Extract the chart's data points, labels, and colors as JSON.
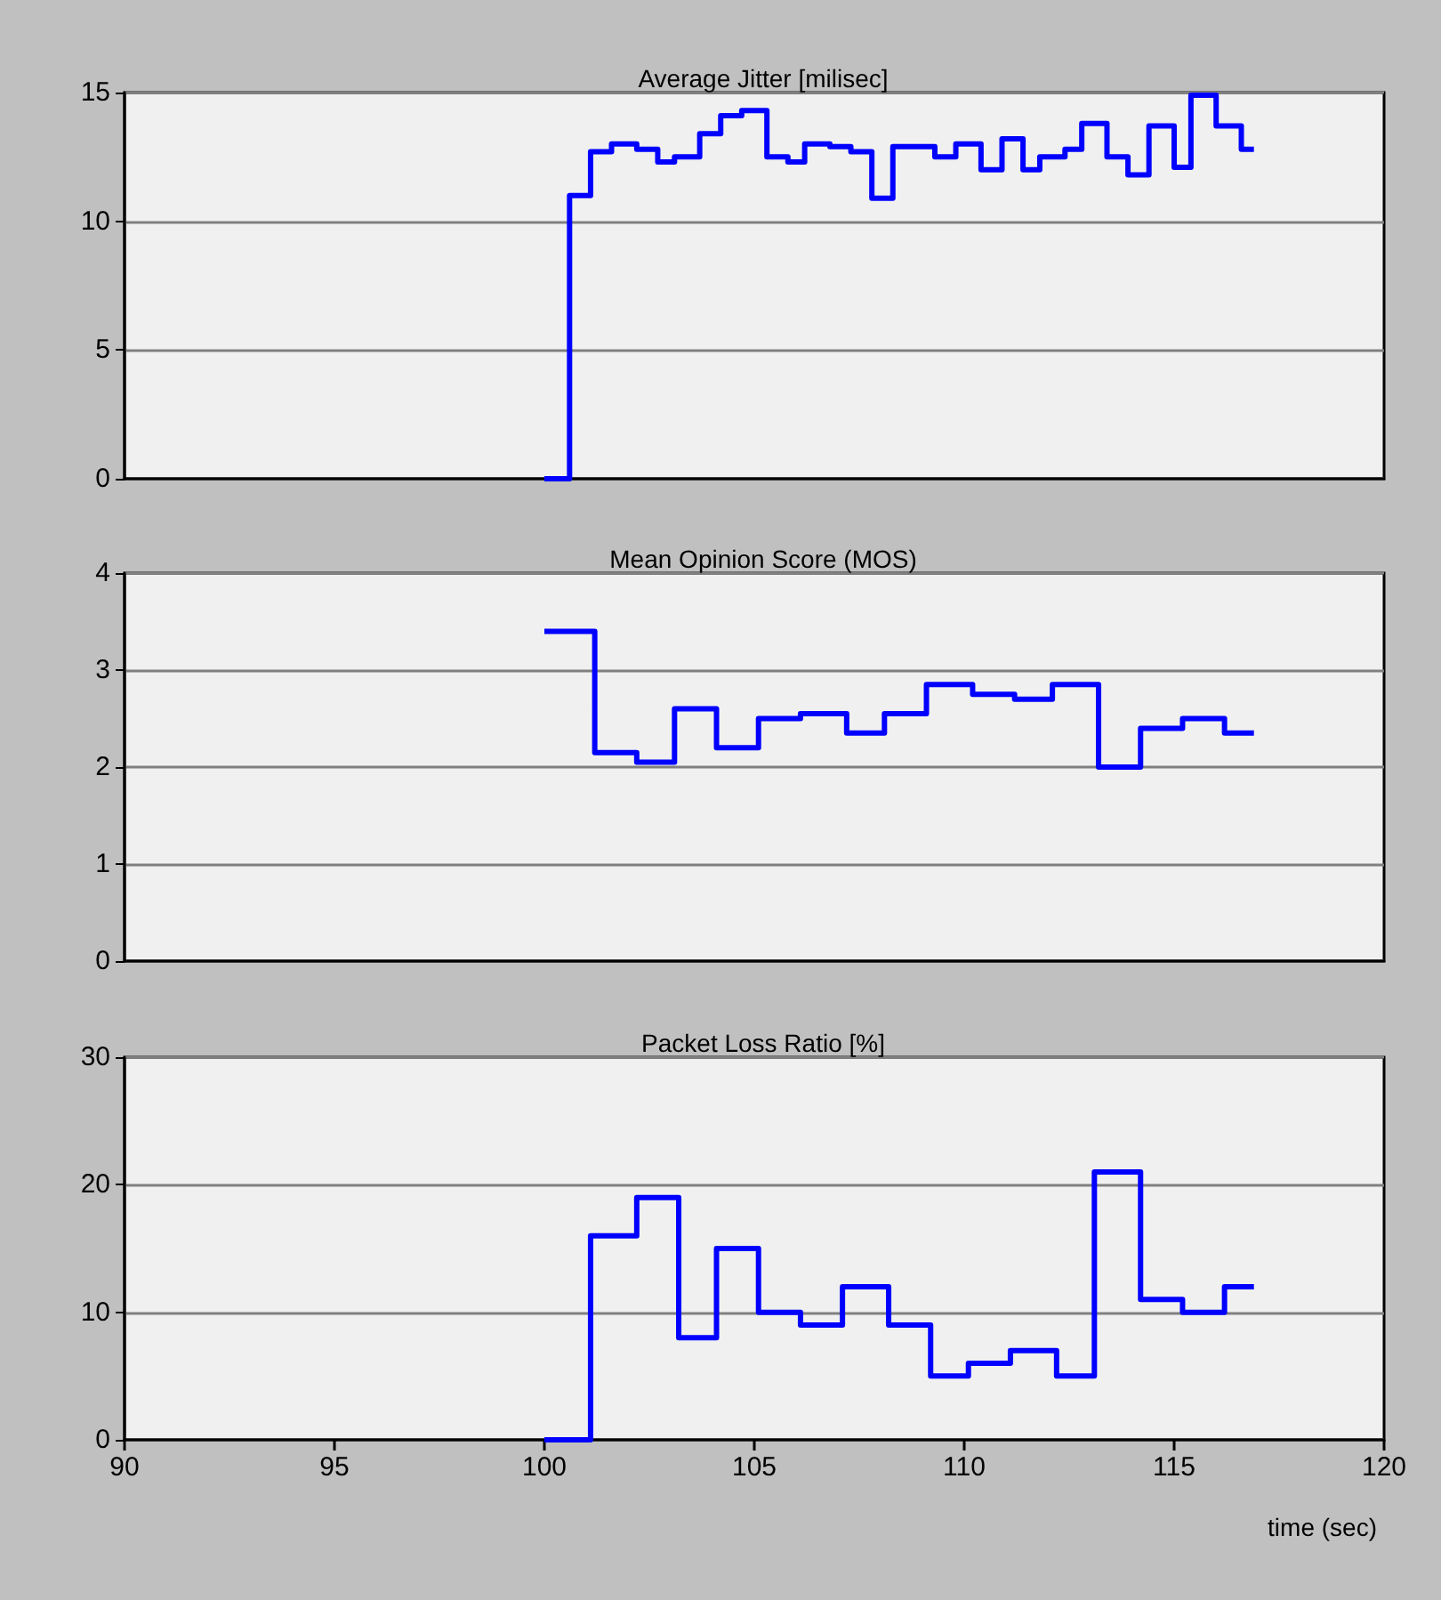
{
  "chart_data": [
    {
      "type": "step",
      "title": "Average Jitter [milisec]",
      "x": [
        100,
        100.6,
        101.1,
        101.6,
        102.2,
        102.7,
        103.1,
        103.7,
        104.2,
        104.7,
        105.3,
        105.8,
        106.2,
        106.8,
        107.3,
        107.8,
        108.3,
        109.3,
        109.8,
        110.4,
        110.9,
        111.4,
        111.8,
        112.4,
        112.8,
        113.4,
        113.9,
        114.4,
        115.0,
        115.4,
        116.0,
        116.6,
        116.9
      ],
      "series": [
        {
          "color": "#0000ff",
          "values": [
            0,
            11.0,
            12.7,
            13.0,
            12.8,
            12.3,
            12.5,
            13.4,
            14.1,
            14.3,
            12.5,
            12.3,
            13.0,
            12.9,
            12.7,
            10.9,
            12.9,
            12.5,
            13.0,
            12.0,
            13.2,
            12.0,
            12.5,
            12.8,
            13.8,
            12.5,
            11.8,
            13.7,
            12.1,
            14.9,
            13.7,
            12.8,
            12.8
          ]
        }
      ],
      "xlim": [
        90,
        120
      ],
      "ylim": [
        0,
        15
      ],
      "yticks": [
        0,
        5,
        10,
        15
      ],
      "grid": "y",
      "marker": "none",
      "line_style": "solid",
      "tick_labels": "y"
    },
    {
      "type": "step",
      "title": "Mean Opinion Score (MOS)",
      "x": [
        100,
        101.2,
        102.2,
        103.1,
        104.1,
        105.1,
        106.1,
        107.2,
        108.1,
        109.1,
        110.2,
        111.2,
        112.1,
        113.2,
        114.2,
        115.2,
        116.2,
        116.9
      ],
      "series": [
        {
          "color": "#0000ff",
          "values": [
            3.4,
            2.15,
            2.05,
            2.6,
            2.2,
            2.5,
            2.55,
            2.35,
            2.55,
            2.85,
            2.75,
            2.7,
            2.85,
            2.0,
            2.4,
            2.5,
            2.35,
            2.35
          ]
        }
      ],
      "xlim": [
        90,
        120
      ],
      "ylim": [
        0,
        4
      ],
      "yticks": [
        0,
        1,
        2,
        3,
        4
      ],
      "grid": "y",
      "marker": "none",
      "line_style": "solid",
      "tick_labels": "y"
    },
    {
      "type": "step",
      "title": "Packet Loss Ratio [%]",
      "xlabel": "time (sec)",
      "x": [
        100,
        101.1,
        102.2,
        103.2,
        104.1,
        105.1,
        106.1,
        107.1,
        108.2,
        109.2,
        110.1,
        111.1,
        112.2,
        113.1,
        114.2,
        115.2,
        116.2,
        116.9
      ],
      "series": [
        {
          "color": "#0000ff",
          "values": [
            0,
            16,
            19,
            8,
            15,
            10,
            9,
            12,
            9,
            5,
            6,
            7,
            5,
            21,
            11,
            10,
            12,
            12
          ]
        }
      ],
      "xlim": [
        90,
        120
      ],
      "xticks": [
        90,
        95,
        100,
        105,
        110,
        115,
        120
      ],
      "ylim": [
        0,
        30
      ],
      "yticks": [
        0,
        10,
        20,
        30
      ],
      "grid": "y",
      "marker": "none",
      "line_style": "solid"
    }
  ]
}
